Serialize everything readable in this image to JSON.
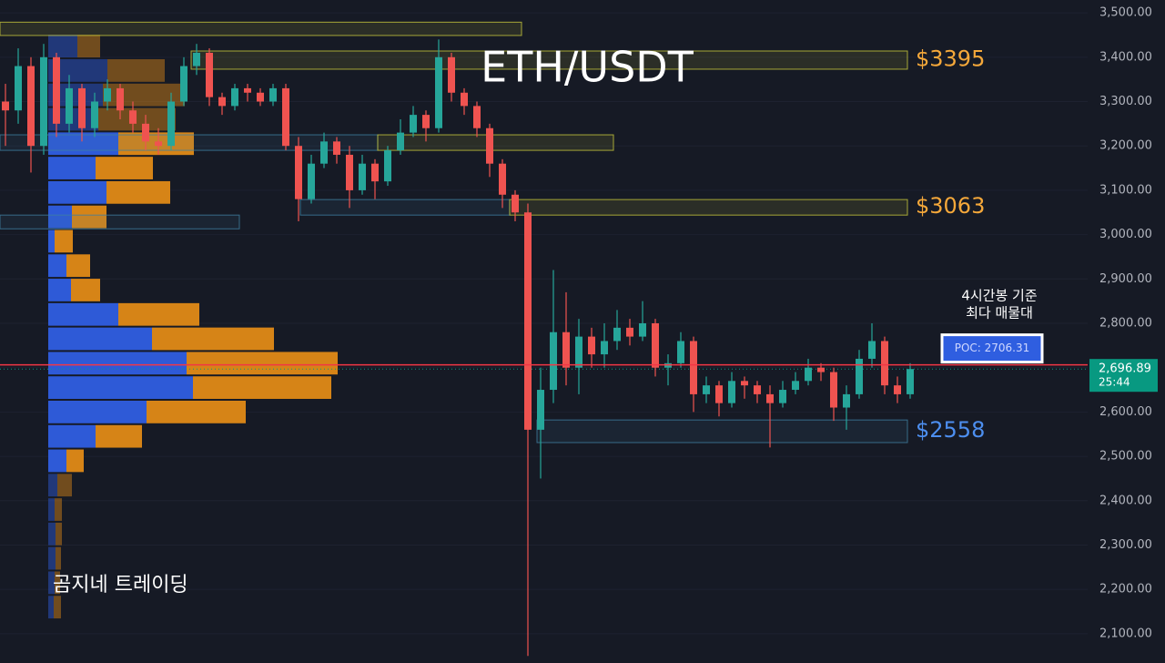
{
  "title": "ETH/USDT",
  "watermark": "곰지네 트레이딩",
  "chart_data": {
    "type": "candlestick",
    "ylim": [
      2034,
      3529
    ],
    "grid": true,
    "yticks": [
      {
        "value": 3500,
        "label": "3,500.00"
      },
      {
        "value": 3400,
        "label": "3,400.00"
      },
      {
        "value": 3300,
        "label": "3,300.00"
      },
      {
        "value": 3200,
        "label": "3,200.00"
      },
      {
        "value": 3100,
        "label": "3,100.00"
      },
      {
        "value": 3000,
        "label": "3,000.00"
      },
      {
        "value": 2900,
        "label": "2,900.00"
      },
      {
        "value": 2800,
        "label": "2,800.00"
      },
      {
        "value": 2700,
        "label": "2,700.00"
      },
      {
        "value": 2600,
        "label": "2,600.00"
      },
      {
        "value": 2500,
        "label": "2,500.00"
      },
      {
        "value": 2400,
        "label": "2,400.00"
      },
      {
        "value": 2300,
        "label": "2,300.00"
      },
      {
        "value": 2200,
        "label": "2,200.00"
      },
      {
        "value": 2100,
        "label": "2,100.00"
      }
    ],
    "up_color": "#26a69a",
    "down_color": "#ef5350",
    "candles": [
      [
        3300,
        3340,
        3200,
        3280
      ],
      [
        3280,
        3420,
        3250,
        3380
      ],
      [
        3380,
        3400,
        3140,
        3200
      ],
      [
        3200,
        3430,
        3180,
        3400
      ],
      [
        3400,
        3410,
        3220,
        3250
      ],
      [
        3250,
        3360,
        3230,
        3330
      ],
      [
        3330,
        3340,
        3210,
        3240
      ],
      [
        3240,
        3320,
        3220,
        3300
      ],
      [
        3300,
        3350,
        3280,
        3330
      ],
      [
        3330,
        3340,
        3260,
        3280
      ],
      [
        3280,
        3300,
        3230,
        3250
      ],
      [
        3250,
        3270,
        3190,
        3210
      ],
      [
        3210,
        3240,
        3180,
        3200
      ],
      [
        3200,
        3320,
        3190,
        3300
      ],
      [
        3300,
        3400,
        3290,
        3380
      ],
      [
        3380,
        3430,
        3360,
        3410
      ],
      [
        3410,
        3420,
        3290,
        3310
      ],
      [
        3310,
        3320,
        3270,
        3290
      ],
      [
        3290,
        3340,
        3280,
        3330
      ],
      [
        3330,
        3340,
        3300,
        3320
      ],
      [
        3320,
        3330,
        3290,
        3300
      ],
      [
        3300,
        3340,
        3290,
        3330
      ],
      [
        3330,
        3340,
        3190,
        3200
      ],
      [
        3200,
        3220,
        3030,
        3080
      ],
      [
        3080,
        3180,
        3070,
        3160
      ],
      [
        3160,
        3230,
        3150,
        3210
      ],
      [
        3210,
        3220,
        3160,
        3180
      ],
      [
        3180,
        3200,
        3060,
        3100
      ],
      [
        3100,
        3180,
        3090,
        3160
      ],
      [
        3160,
        3170,
        3080,
        3120
      ],
      [
        3120,
        3200,
        3110,
        3190
      ],
      [
        3190,
        3260,
        3180,
        3230
      ],
      [
        3230,
        3290,
        3220,
        3270
      ],
      [
        3270,
        3280,
        3210,
        3240
      ],
      [
        3240,
        3440,
        3230,
        3400
      ],
      [
        3400,
        3410,
        3300,
        3320
      ],
      [
        3320,
        3330,
        3270,
        3290
      ],
      [
        3290,
        3300,
        3220,
        3240
      ],
      [
        3240,
        3250,
        3130,
        3160
      ],
      [
        3160,
        3170,
        3060,
        3090
      ],
      [
        3090,
        3100,
        3030,
        3050
      ],
      [
        3050,
        3070,
        2050,
        2560
      ],
      [
        2560,
        2700,
        2450,
        2650
      ],
      [
        2650,
        2920,
        2620,
        2780
      ],
      [
        2780,
        2870,
        2660,
        2700
      ],
      [
        2700,
        2810,
        2640,
        2770
      ],
      [
        2770,
        2790,
        2700,
        2730
      ],
      [
        2730,
        2800,
        2700,
        2760
      ],
      [
        2760,
        2830,
        2740,
        2790
      ],
      [
        2790,
        2810,
        2750,
        2770
      ],
      [
        2770,
        2850,
        2760,
        2800
      ],
      [
        2800,
        2810,
        2680,
        2700
      ],
      [
        2700,
        2730,
        2660,
        2710
      ],
      [
        2710,
        2780,
        2700,
        2760
      ],
      [
        2760,
        2770,
        2600,
        2640
      ],
      [
        2640,
        2680,
        2620,
        2660
      ],
      [
        2660,
        2670,
        2590,
        2620
      ],
      [
        2620,
        2690,
        2610,
        2670
      ],
      [
        2670,
        2680,
        2630,
        2660
      ],
      [
        2660,
        2670,
        2620,
        2640
      ],
      [
        2640,
        2660,
        2520,
        2620
      ],
      [
        2620,
        2670,
        2610,
        2650
      ],
      [
        2650,
        2690,
        2640,
        2670
      ],
      [
        2670,
        2720,
        2660,
        2700
      ],
      [
        2700,
        2710,
        2670,
        2690
      ],
      [
        2690,
        2700,
        2580,
        2610
      ],
      [
        2610,
        2660,
        2560,
        2640
      ],
      [
        2640,
        2740,
        2630,
        2720
      ],
      [
        2720,
        2800,
        2700,
        2760
      ],
      [
        2760,
        2770,
        2640,
        2660
      ],
      [
        2660,
        2680,
        2620,
        2640
      ],
      [
        2640,
        2710,
        2630,
        2696.89
      ]
    ],
    "volume_profile": {
      "buy_color": "#2f5ee0",
      "sell_color": "#e08a16",
      "prices": [
        3425,
        3370,
        3315,
        3260,
        3205,
        3150,
        3095,
        3040,
        2985,
        2930,
        2875,
        2820,
        2765,
        2710,
        2655,
        2600,
        2545,
        2490,
        2435,
        2380,
        2325,
        2270,
        2215,
        2160
      ],
      "buy": [
        32,
        65,
        60,
        55,
        77,
        52,
        64,
        26,
        7,
        20,
        25,
        77,
        114,
        152,
        159,
        108,
        52,
        20,
        10,
        7,
        8,
        8,
        7,
        6
      ],
      "sell": [
        25,
        63,
        90,
        85,
        83,
        63,
        70,
        38,
        20,
        26,
        32,
        89,
        134,
        166,
        152,
        109,
        51,
        19,
        16,
        8,
        7,
        6,
        6,
        8
      ]
    },
    "zones": [
      {
        "range": [
          3449,
          3479
        ],
        "color": "#c8c83c"
      },
      {
        "range": [
          3373,
          3414
        ],
        "color": "#c8c83c"
      },
      {
        "range": [
          3190,
          3225
        ],
        "color": "#3f7fa0"
      },
      {
        "range": [
          3190,
          3225
        ],
        "color": "#c8c83c"
      },
      {
        "range": [
          3044,
          3079
        ],
        "color": "#3f7fa0"
      },
      {
        "range": [
          3044,
          3079
        ],
        "color": "#c8c83c"
      },
      {
        "range": [
          3013,
          3044
        ],
        "color": "#3f7fa0"
      },
      {
        "range": [
          2531,
          2582
        ],
        "color": "#3f7fa0"
      }
    ],
    "levels": [
      {
        "value": 3395,
        "label": "$3395",
        "color": "#f5a83a"
      },
      {
        "value": 3063,
        "label": "$3063",
        "color": "#f5a83a"
      },
      {
        "value": 2558,
        "label": "$2558",
        "color": "#4d8ff0"
      }
    ],
    "poc": {
      "value": 2706.31,
      "label": "POC: 2706.31",
      "note": [
        "4시간봉 기준",
        "최다 매물대"
      ],
      "color": "#f23645"
    },
    "last_price": {
      "value": 2696.89,
      "label": "2,696.89",
      "countdown": "25:44",
      "color": "#089981"
    }
  }
}
